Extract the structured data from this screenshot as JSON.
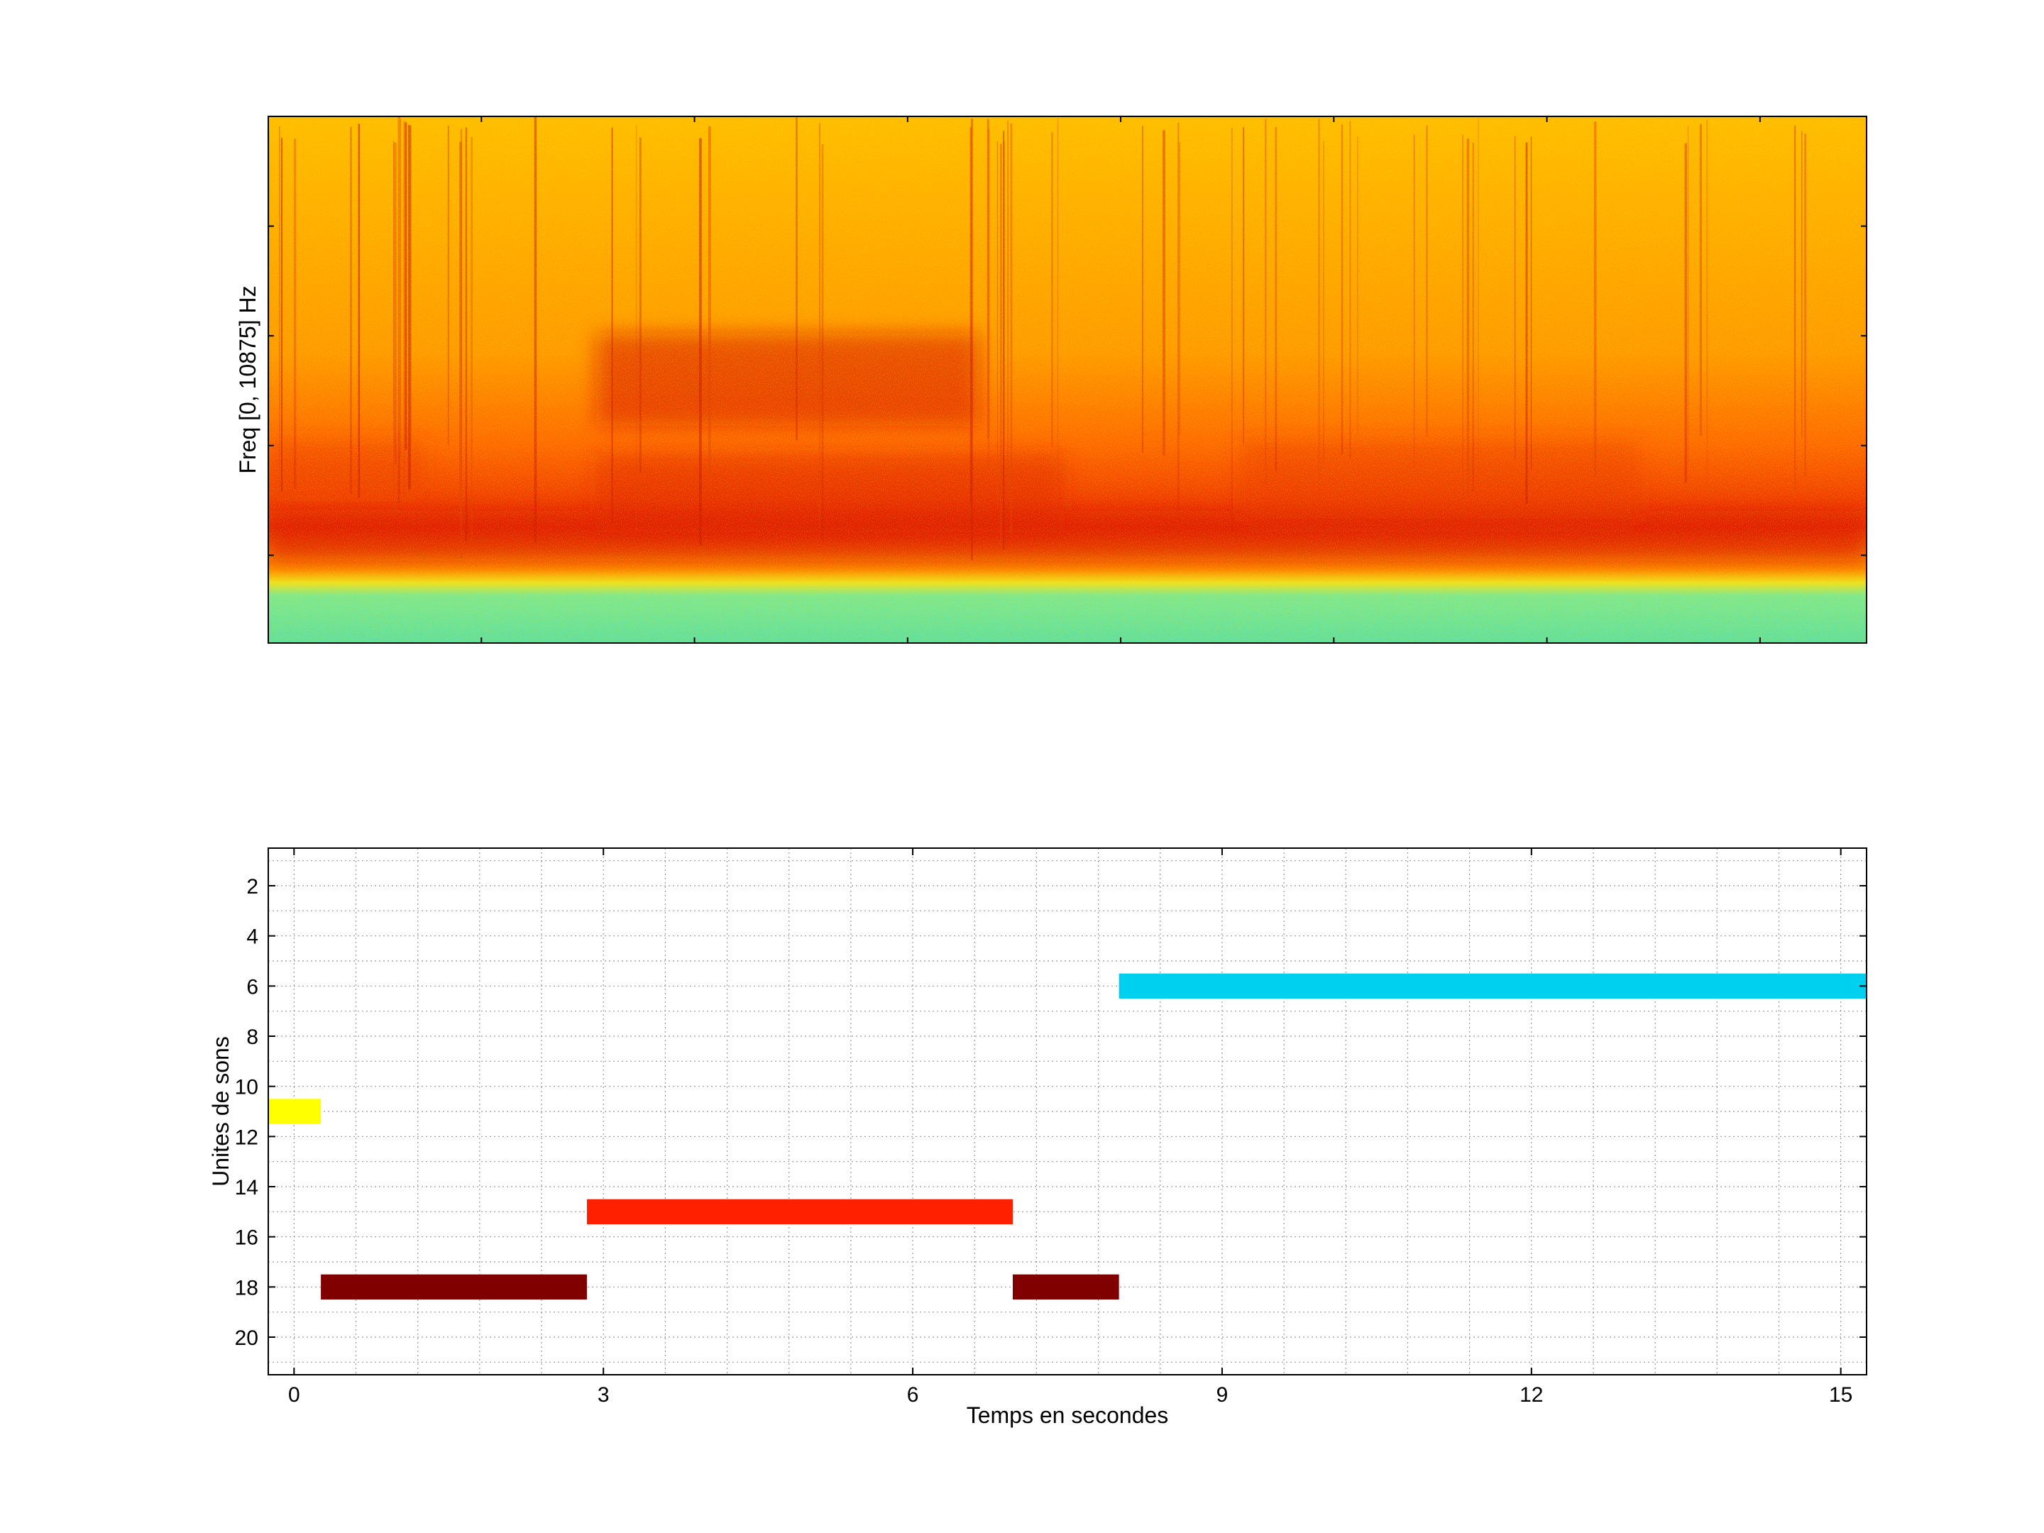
{
  "chart_data": [
    {
      "type": "heatmap",
      "title": "",
      "xlabel": "",
      "ylabel": "Freq [0, 10875] Hz",
      "ylim_hz": [
        0,
        10875
      ],
      "grid": false,
      "colormap": "jet",
      "colors": {
        "low": "#5fe3a0",
        "mid": "#ffd400",
        "high": "#ff8c00",
        "peak": "#d41800"
      }
    },
    {
      "type": "bar",
      "orientation": "horizontal-intervals",
      "title": "",
      "xlabel": "Temps en secondes",
      "ylabel": "Unites de sons",
      "xlim": [
        -0.25,
        15.25
      ],
      "ylim": [
        21.5,
        0.5
      ],
      "y_reversed": true,
      "xticks": [
        0,
        3,
        6,
        9,
        12,
        15
      ],
      "yticks": [
        2,
        4,
        6,
        8,
        10,
        12,
        14,
        16,
        18,
        20
      ],
      "grid": true,
      "minor_grid": true,
      "segments": [
        {
          "unit": 11,
          "start": -0.25,
          "end": 0.26,
          "color": "#ffff00"
        },
        {
          "unit": 18,
          "start": 0.26,
          "end": 2.84,
          "color": "#800000"
        },
        {
          "unit": 15,
          "start": 2.84,
          "end": 6.97,
          "color": "#ff2000"
        },
        {
          "unit": 18,
          "start": 6.97,
          "end": 8.0,
          "color": "#800000"
        },
        {
          "unit": 6,
          "start": 8.0,
          "end": 15.25,
          "color": "#00d0f0"
        }
      ]
    }
  ]
}
